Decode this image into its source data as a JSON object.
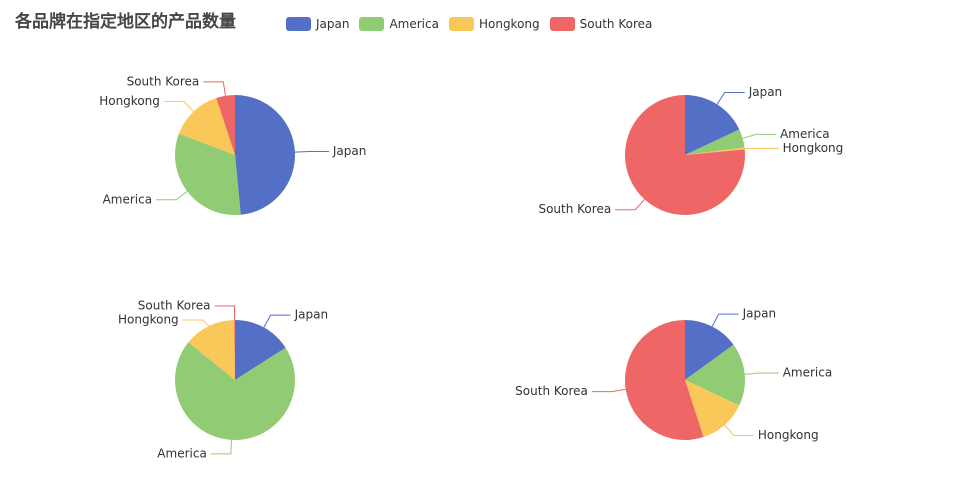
{
  "title": "各品牌在指定地区的产品数量",
  "colors": {
    "Japan": "#5470c6",
    "America": "#91cc75",
    "Hongkong": "#fac858",
    "South Korea": "#ee6666"
  },
  "legend": [
    "Japan",
    "America",
    "Hongkong",
    "South Korea"
  ],
  "chart_data": [
    {
      "type": "pie",
      "categories": [
        "Japan",
        "America",
        "Hongkong",
        "South Korea"
      ],
      "values": [
        48,
        32,
        14,
        5
      ]
    },
    {
      "type": "pie",
      "categories": [
        "Japan",
        "America",
        "Hongkong",
        "South Korea"
      ],
      "values": [
        18,
        5,
        0.5,
        76.5
      ]
    },
    {
      "type": "pie",
      "categories": [
        "Japan",
        "America",
        "Hongkong",
        "South Korea"
      ],
      "values": [
        16,
        70,
        14,
        0.2
      ]
    },
    {
      "type": "pie",
      "categories": [
        "Japan",
        "America",
        "Hongkong",
        "South Korea"
      ],
      "values": [
        15,
        17,
        13,
        55
      ]
    }
  ]
}
